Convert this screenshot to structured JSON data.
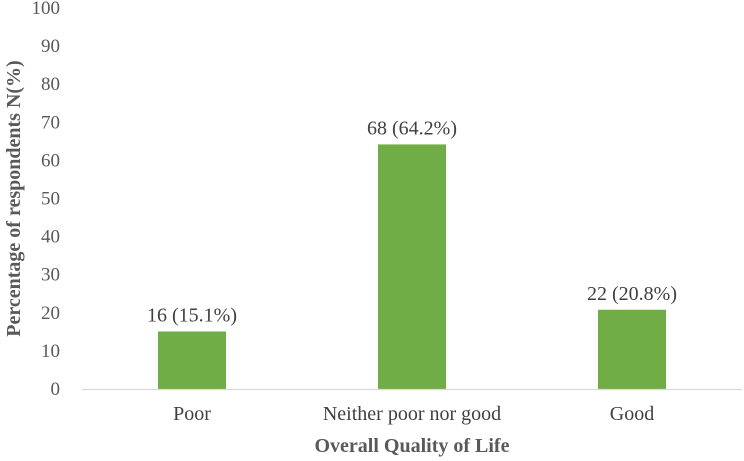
{
  "chart_data": {
    "type": "bar",
    "title": "",
    "xlabel": "Overall Quality of Life",
    "ylabel": "Percentage of respondents N(%)",
    "categories": [
      "Poor",
      "Neither poor nor good",
      "Good"
    ],
    "values": [
      15.1,
      64.2,
      20.8
    ],
    "data_labels": [
      "16 (15.1%)",
      "68 (64.2%)",
      "22 (20.8%)"
    ],
    "ylim": [
      0,
      100
    ],
    "yticks": [
      0,
      10,
      20,
      30,
      40,
      50,
      60,
      70,
      80,
      90,
      100
    ],
    "grid": false,
    "legend": "none",
    "bar_color": "#70AD47",
    "axis_color": "#D9D9D9"
  }
}
